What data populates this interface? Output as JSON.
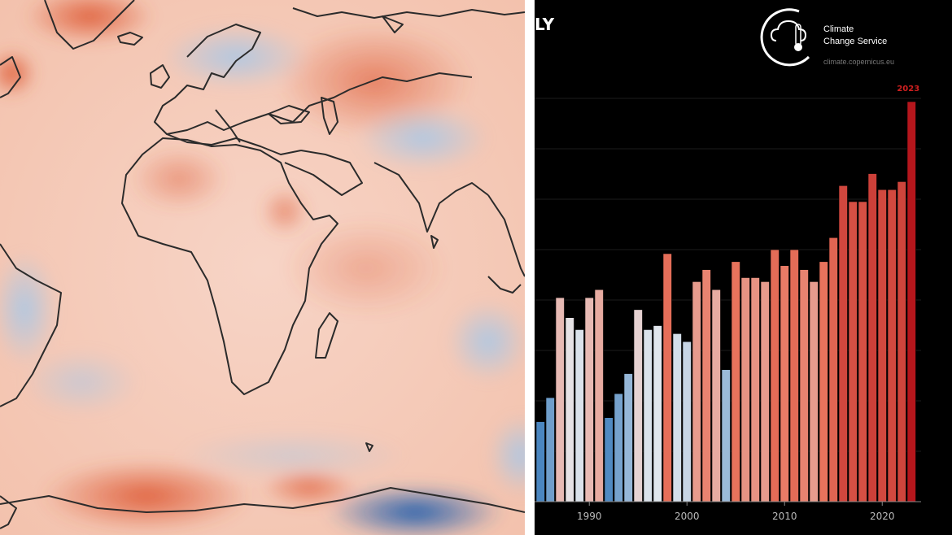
{
  "title_fragment": "LY",
  "logo": {
    "line1": "Climate",
    "line2": "Change Service",
    "url": "climate.copernicus.eu",
    "icon": "cloud-thermometer-icon"
  },
  "colors": {
    "cold": "#4a86c0",
    "neutral": "#e6eaef",
    "warm": "#e8735c",
    "hot": "#b5161c",
    "map_ocean_warm": "#f6c9b6",
    "map_ocean_cool": "#c9dcef",
    "map_strong_warm": "#d94a1f",
    "map_strong_cool": "#2f6db3"
  },
  "chart_data": {
    "type": "bar",
    "x": [
      1985,
      1986,
      1987,
      1988,
      1989,
      1990,
      1991,
      1992,
      1993,
      1994,
      1995,
      1996,
      1997,
      1998,
      1999,
      2000,
      2001,
      2002,
      2003,
      2004,
      2005,
      2006,
      2007,
      2008,
      2009,
      2010,
      2011,
      2012,
      2013,
      2014,
      2015,
      2016,
      2017,
      2018,
      2019,
      2020,
      2021,
      2022,
      2023
    ],
    "values": [
      0.2,
      0.26,
      0.51,
      0.46,
      0.43,
      0.51,
      0.53,
      0.21,
      0.27,
      0.32,
      0.48,
      0.43,
      0.44,
      0.62,
      0.42,
      0.4,
      0.55,
      0.58,
      0.53,
      0.33,
      0.6,
      0.56,
      0.56,
      0.55,
      0.63,
      0.59,
      0.63,
      0.58,
      0.55,
      0.6,
      0.66,
      0.79,
      0.75,
      0.75,
      0.82,
      0.78,
      0.78,
      0.8,
      1.0
    ],
    "x_ticks": [
      "1990",
      "2000",
      "2010",
      "2020"
    ],
    "annotations": [
      {
        "x": 2023,
        "text": "2023"
      }
    ],
    "grid": true
  }
}
